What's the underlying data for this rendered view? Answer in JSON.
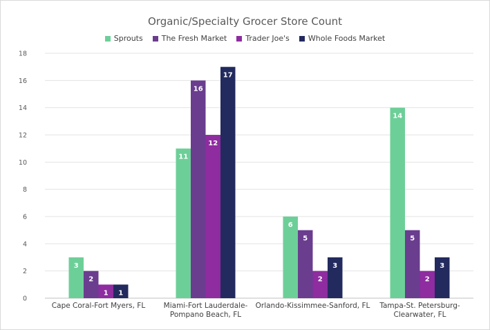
{
  "chart_data": {
    "type": "bar",
    "title": "Organic/Specialty Grocer Store Count",
    "xlabel": "",
    "ylabel": "",
    "ylim": [
      0,
      18
    ],
    "yticks": [
      0,
      2,
      4,
      6,
      8,
      10,
      12,
      14,
      16,
      18
    ],
    "grid": true,
    "legend": "top",
    "categories": [
      [
        "Cape Coral-Fort Myers, FL"
      ],
      [
        "Miami-Fort Lauderdale-",
        "Pompano Beach, FL"
      ],
      [
        "Orlando-Kissimmee-Sanford, FL"
      ],
      [
        "Tampa-St. Petersburg-",
        "Clearwater, FL"
      ]
    ],
    "series": [
      {
        "name": "Sprouts",
        "color": "#6dcf98",
        "values": [
          3,
          11,
          6,
          14
        ]
      },
      {
        "name": "The Fresh Market",
        "color": "#6a3d8f",
        "values": [
          2,
          16,
          5,
          5
        ]
      },
      {
        "name": "Trader Joe's",
        "color": "#8e2ca0",
        "values": [
          1,
          12,
          2,
          2
        ]
      },
      {
        "name": "Whole Foods Market",
        "color": "#222a5e",
        "values": [
          1,
          17,
          3,
          3
        ]
      }
    ]
  }
}
